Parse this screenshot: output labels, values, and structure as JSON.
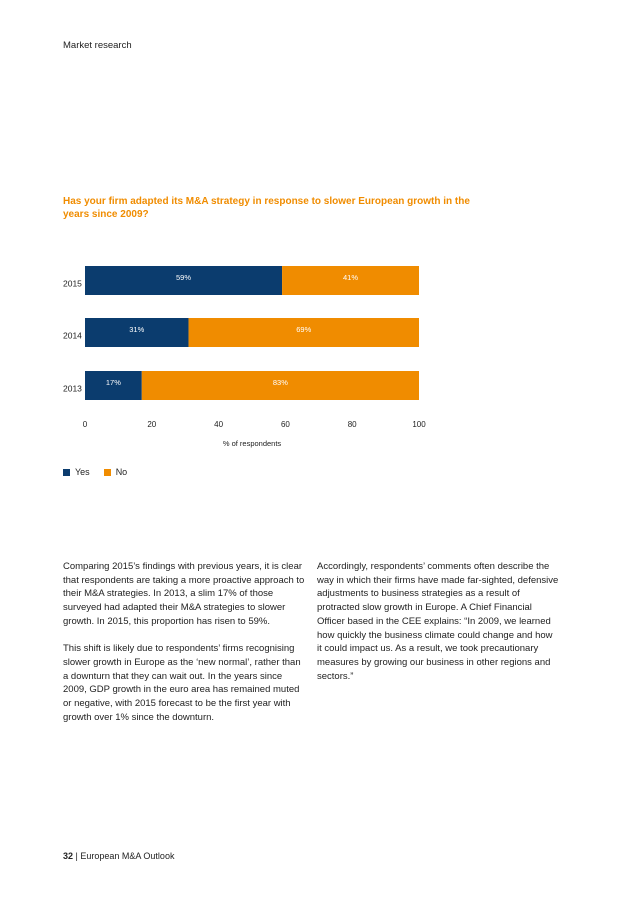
{
  "header": {
    "section": "Market research"
  },
  "chart_data": {
    "type": "bar",
    "orientation": "horizontal",
    "stacked": true,
    "title": "Has your firm adapted its M&A strategy in response to slower European growth in the years since 2009?",
    "categories": [
      "2015",
      "2014",
      "2013"
    ],
    "series": [
      {
        "name": "Yes",
        "values": [
          59,
          31,
          17
        ],
        "labels": [
          "59%",
          "31%",
          "17%"
        ],
        "color": "#0b3c6e"
      },
      {
        "name": "No",
        "values": [
          41,
          69,
          83
        ],
        "labels": [
          "41%",
          "69%",
          "83%"
        ],
        "color": "#f08c00"
      }
    ],
    "xlabel": "% of respondents",
    "xlim": [
      0,
      100
    ],
    "xticks": [
      "0",
      "20",
      "40",
      "60",
      "80",
      "100"
    ],
    "legend_position": "bottom-left",
    "grid": false
  },
  "body": {
    "left": [
      "Comparing 2015’s findings with previous years, it is clear that respondents are taking a more proactive approach to their M&A strategies. In 2013, a slim 17% of those surveyed had adapted their M&A strategies to slower growth. In 2015, this proportion has risen to 59%.",
      "This shift is likely due to respondents’ firms recognising slower growth in Europe as the ‘new normal’, rather than a downturn that they can wait out. In the years since 2009, GDP growth in the euro area has remained muted or negative, with 2015 forecast to be the first year with growth over 1% since the downturn."
    ],
    "right": [
      "Accordingly, respondents’ comments often describe the way in which their firms have made far-sighted, defensive adjustments to business strategies as a result of protracted slow growth in Europe. A Chief Financial Officer based in the CEE explains: “In 2009, we learned how quickly the business climate could change and how it could impact us. As a result, we took precautionary measures by growing our business in other regions and sectors.”"
    ]
  },
  "footer": {
    "page_number": "32",
    "separator": "|",
    "publication": "European M&A Outlook"
  }
}
